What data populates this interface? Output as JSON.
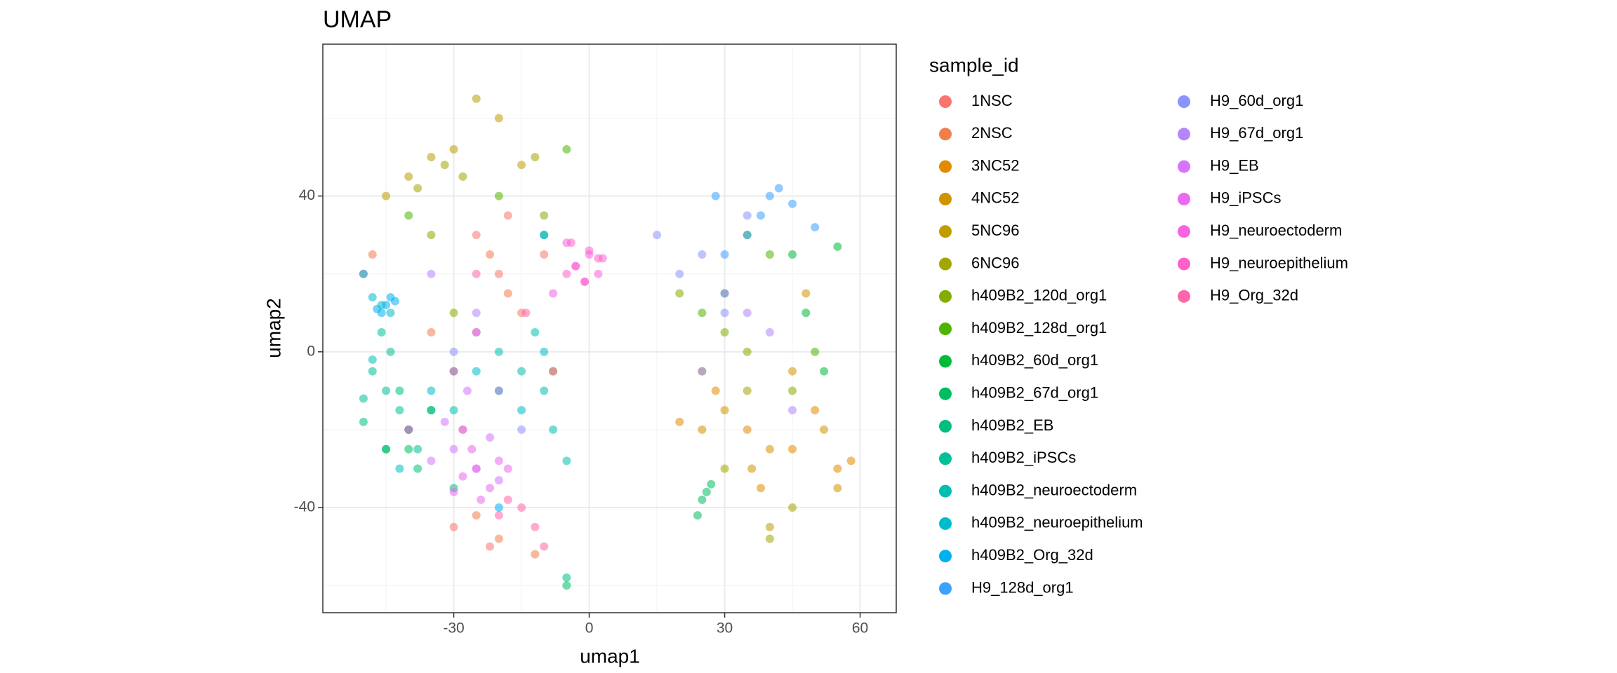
{
  "chart_data": {
    "type": "scatter",
    "title": "UMAP",
    "x_label": "umap1",
    "y_label": "umap2",
    "legend_title": "sample_id",
    "xlim": [
      -59,
      68
    ],
    "ylim": [
      -67,
      79
    ],
    "xticks": [
      -30,
      0,
      30,
      60
    ],
    "yticks": [
      -40,
      0,
      40
    ],
    "grid": true,
    "legend": "right",
    "series": [
      {
        "name": "1NSC",
        "color": "#F8766D",
        "x": [
          -20,
          -25,
          -15,
          -30,
          -22,
          -10,
          -18,
          -28
        ],
        "y": [
          20,
          30,
          10,
          -45,
          -50,
          25,
          35,
          -20
        ]
      },
      {
        "name": "2NSC",
        "color": "#F07F4C",
        "x": [
          -22,
          -18,
          -50,
          -48,
          -20,
          -25,
          -12,
          -35
        ],
        "y": [
          25,
          15,
          20,
          25,
          -48,
          -42,
          -52,
          5
        ]
      },
      {
        "name": "3NC52",
        "color": "#E28A00",
        "x": [
          35,
          45,
          55,
          28,
          50,
          38,
          20,
          58
        ],
        "y": [
          -20,
          -25,
          -30,
          -10,
          -15,
          -35,
          -18,
          -28
        ]
      },
      {
        "name": "4NC52",
        "color": "#D19400",
        "x": [
          40,
          52,
          30,
          45,
          55,
          48,
          25,
          36
        ],
        "y": [
          -25,
          -20,
          -15,
          -5,
          -35,
          15,
          -20,
          -30
        ]
      },
      {
        "name": "5NC96",
        "color": "#BD9D00",
        "x": [
          -35,
          -40,
          -15,
          -30,
          -20,
          -45,
          40,
          -25
        ],
        "y": [
          50,
          45,
          48,
          52,
          60,
          40,
          -45,
          65
        ]
      },
      {
        "name": "6NC96",
        "color": "#A3A500",
        "x": [
          -32,
          -38,
          -12,
          40,
          45,
          30,
          35,
          -28
        ],
        "y": [
          48,
          42,
          50,
          -48,
          -40,
          -30,
          -10,
          45
        ]
      },
      {
        "name": "h409B2_120d_org1",
        "color": "#84AD00",
        "x": [
          30,
          -30,
          25,
          35,
          -35,
          -10,
          45,
          20
        ],
        "y": [
          5,
          10,
          -5,
          0,
          30,
          35,
          -10,
          15
        ]
      },
      {
        "name": "h409B2_128d_org1",
        "color": "#4FB400",
        "x": [
          -5,
          40,
          35,
          -20,
          -40,
          -8,
          50,
          25
        ],
        "y": [
          52,
          25,
          30,
          40,
          35,
          -5,
          0,
          10
        ]
      },
      {
        "name": "h409B2_60d_org1",
        "color": "#00BA38",
        "x": [
          48,
          45,
          52,
          -30,
          -10,
          30,
          55,
          -45
        ],
        "y": [
          10,
          25,
          -5,
          -5,
          30,
          15,
          27,
          -25
        ]
      },
      {
        "name": "h409B2_67d_org1",
        "color": "#00BD5F",
        "x": [
          25,
          27,
          24,
          -40,
          -35,
          -5,
          26,
          -20
        ],
        "y": [
          -38,
          -34,
          -42,
          -25,
          -15,
          -60,
          -36,
          -10
        ]
      },
      {
        "name": "h409B2_EB",
        "color": "#00BF7D",
        "x": [
          -40,
          -45,
          -35,
          -38,
          -42,
          -30,
          -5,
          -50
        ],
        "y": [
          -20,
          -25,
          -15,
          -30,
          -10,
          -35,
          -58,
          -18
        ]
      },
      {
        "name": "h409B2_iPSCs",
        "color": "#00C098",
        "x": [
          -45,
          -48,
          -42,
          -50,
          -40,
          -44,
          -38,
          -46
        ],
        "y": [
          -10,
          -5,
          -15,
          -12,
          -20,
          0,
          -25,
          5
        ]
      },
      {
        "name": "h409B2_neuroectoderm",
        "color": "#00BFB2",
        "x": [
          -10,
          -15,
          -5,
          -20,
          -8,
          -12,
          -30,
          -48
        ],
        "y": [
          -10,
          -5,
          -28,
          0,
          -20,
          5,
          -15,
          -2
        ]
      },
      {
        "name": "h409B2_neuroepithelium",
        "color": "#00BCCA",
        "x": [
          -46,
          -44,
          -48,
          -15,
          -10,
          -25,
          -35,
          -42
        ],
        "y": [
          12,
          10,
          14,
          -15,
          0,
          -5,
          -10,
          -30
        ]
      },
      {
        "name": "h409B2_Org_32d",
        "color": "#00B0F0",
        "x": [
          -45,
          -47,
          -43,
          -46,
          -44,
          -10,
          -50,
          -20
        ],
        "y": [
          12,
          11,
          13,
          10,
          14,
          30,
          20,
          -40
        ]
      },
      {
        "name": "H9_128d_org1",
        "color": "#3DA1FF",
        "x": [
          40,
          38,
          42,
          35,
          45,
          30,
          28,
          50
        ],
        "y": [
          40,
          35,
          42,
          30,
          38,
          25,
          40,
          32
        ]
      },
      {
        "name": "H9_60d_org1",
        "color": "#8B93FF",
        "x": [
          25,
          20,
          30,
          -30,
          -25,
          15,
          35,
          -15
        ],
        "y": [
          25,
          20,
          10,
          0,
          5,
          30,
          35,
          -20
        ]
      },
      {
        "name": "H9_67d_org1",
        "color": "#B385FF",
        "x": [
          35,
          30,
          40,
          -25,
          -20,
          25,
          -35,
          45
        ],
        "y": [
          10,
          15,
          5,
          10,
          -10,
          -5,
          20,
          -15
        ]
      },
      {
        "name": "H9_EB",
        "color": "#D575FE",
        "x": [
          -30,
          -28,
          -25,
          -32,
          -22,
          -35,
          -20,
          -27
        ],
        "y": [
          -25,
          -20,
          -30,
          -18,
          -22,
          -28,
          -33,
          -10
        ]
      },
      {
        "name": "H9_iPSCs",
        "color": "#EA6AF1",
        "x": [
          -25,
          -22,
          -28,
          -20,
          -24,
          -26,
          -18,
          -30
        ],
        "y": [
          -30,
          -35,
          -32,
          -28,
          -38,
          -25,
          -30,
          -36
        ]
      },
      {
        "name": "H9_neuroectoderm",
        "color": "#F763E0",
        "x": [
          0,
          -3,
          2,
          -5,
          3,
          -1,
          -8,
          -30
        ],
        "y": [
          25,
          22,
          20,
          28,
          24,
          18,
          15,
          -5
        ]
      },
      {
        "name": "H9_neuroepithelium",
        "color": "#FF61CA",
        "x": [
          -3,
          0,
          -5,
          2,
          -1,
          -4,
          -25,
          -40
        ],
        "y": [
          22,
          26,
          20,
          24,
          18,
          28,
          5,
          -20
        ]
      },
      {
        "name": "H9_Org_32d",
        "color": "#FF66A8",
        "x": [
          -15,
          -12,
          -18,
          -10,
          -20,
          -8,
          -14,
          -25
        ],
        "y": [
          -40,
          -45,
          -38,
          -50,
          -42,
          -5,
          10,
          20
        ]
      }
    ]
  }
}
